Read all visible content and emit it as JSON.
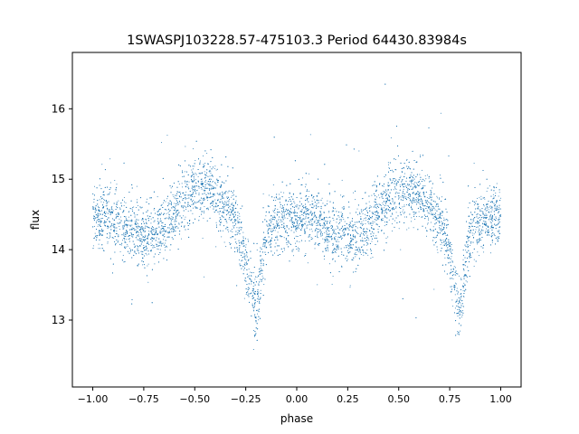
{
  "chart_data": {
    "type": "scatter",
    "title": "1SWASPJ103228.57-475103.3 Period 64430.83984s",
    "xlabel": "phase",
    "ylabel": "flux",
    "xlim": [
      -1.1,
      1.1
    ],
    "ylim": [
      12.05,
      16.8
    ],
    "xticks": [
      -1.0,
      -0.75,
      -0.5,
      -0.25,
      0.0,
      0.25,
      0.5,
      0.75,
      1.0
    ],
    "xtick_labels": [
      "−1.00",
      "−0.75",
      "−0.50",
      "−0.25",
      "0.00",
      "0.25",
      "0.50",
      "0.75",
      "1.00"
    ],
    "yticks": [
      13,
      14,
      15,
      16
    ],
    "ytick_labels": [
      "13",
      "14",
      "15",
      "16"
    ],
    "grid": false,
    "legend": "none",
    "marker_color": "#1f77b4",
    "series": [
      {
        "phase": [
          -1.0,
          -0.95,
          -0.9,
          -0.85,
          -0.8,
          -0.75,
          -0.7,
          -0.65,
          -0.6,
          -0.55,
          -0.5,
          -0.45,
          -0.4,
          -0.35,
          -0.3,
          -0.27,
          -0.24,
          -0.22,
          -0.21,
          -0.2,
          -0.19,
          -0.18,
          -0.16,
          -0.12,
          -0.05,
          0.0,
          0.05,
          0.1,
          0.15,
          0.2,
          0.25,
          0.3,
          0.35,
          0.4,
          0.45,
          0.5,
          0.55,
          0.6,
          0.65,
          0.7,
          0.73,
          0.76,
          0.78,
          0.79,
          0.8,
          0.81,
          0.82,
          0.84,
          0.88,
          0.95,
          1.0
        ],
        "flux": [
          14.45,
          14.5,
          14.42,
          14.3,
          14.25,
          14.22,
          14.2,
          14.35,
          14.55,
          14.75,
          14.85,
          14.88,
          14.78,
          14.62,
          14.4,
          14.1,
          13.7,
          13.4,
          13.25,
          13.2,
          13.3,
          13.6,
          14.05,
          14.35,
          14.45,
          14.45,
          14.48,
          14.4,
          14.28,
          14.22,
          14.2,
          14.2,
          14.32,
          14.52,
          14.72,
          14.84,
          14.88,
          14.8,
          14.62,
          14.42,
          14.15,
          13.75,
          13.45,
          13.3,
          13.22,
          13.3,
          13.6,
          14.05,
          14.35,
          14.45,
          14.45
        ],
        "scatter_sd": 0.22
      }
    ]
  }
}
